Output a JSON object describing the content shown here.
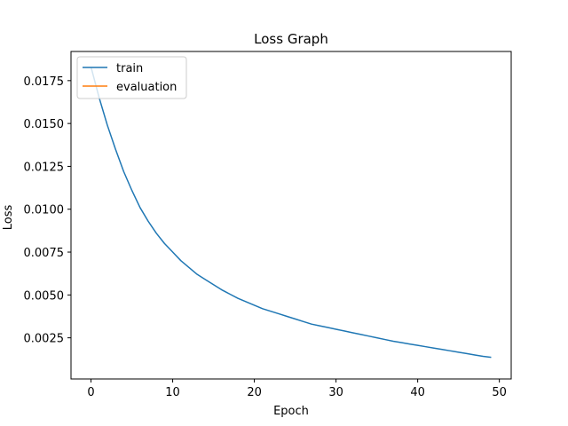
{
  "chart_data": {
    "type": "line",
    "title": "Loss Graph",
    "xlabel": "Epoch",
    "ylabel": "Loss",
    "xlim": [
      -2.45,
      51.45
    ],
    "ylim": [
      0.0001,
      0.0192
    ],
    "xticks": [
      0,
      10,
      20,
      30,
      40,
      50
    ],
    "yticks": [
      0.0025,
      0.005,
      0.0075,
      0.01,
      0.0125,
      0.015,
      0.0175
    ],
    "ytick_labels": [
      "0.0025",
      "0.0050",
      "0.0075",
      "0.0100",
      "0.0125",
      "0.0150",
      "0.0175"
    ],
    "grid": false,
    "legend_position": "upper left",
    "series": [
      {
        "name": "train",
        "color": "#1f77b4",
        "x": [
          0,
          1,
          2,
          3,
          4,
          5,
          6,
          7,
          8,
          9,
          10,
          11,
          12,
          13,
          14,
          15,
          16,
          17,
          18,
          19,
          20,
          21,
          22,
          23,
          24,
          25,
          26,
          27,
          28,
          29,
          30,
          31,
          32,
          33,
          34,
          35,
          36,
          37,
          38,
          39,
          40,
          41,
          42,
          43,
          44,
          45,
          46,
          47,
          48,
          49
        ],
        "y": [
          0.0183,
          0.0165,
          0.0149,
          0.0135,
          0.0122,
          0.0111,
          0.0101,
          0.0093,
          0.0086,
          0.008,
          0.0075,
          0.007,
          0.0066,
          0.0062,
          0.0059,
          0.0056,
          0.0053,
          0.00505,
          0.0048,
          0.0046,
          0.0044,
          0.0042,
          0.00405,
          0.0039,
          0.00375,
          0.0036,
          0.00345,
          0.0033,
          0.0032,
          0.0031,
          0.003,
          0.0029,
          0.0028,
          0.0027,
          0.0026,
          0.0025,
          0.0024,
          0.0023,
          0.00222,
          0.00214,
          0.00206,
          0.00198,
          0.0019,
          0.00182,
          0.00174,
          0.00166,
          0.00158,
          0.0015,
          0.00142,
          0.00136
        ]
      },
      {
        "name": "evaluation",
        "color": "#ff7f0e",
        "x": [],
        "y": []
      }
    ]
  }
}
